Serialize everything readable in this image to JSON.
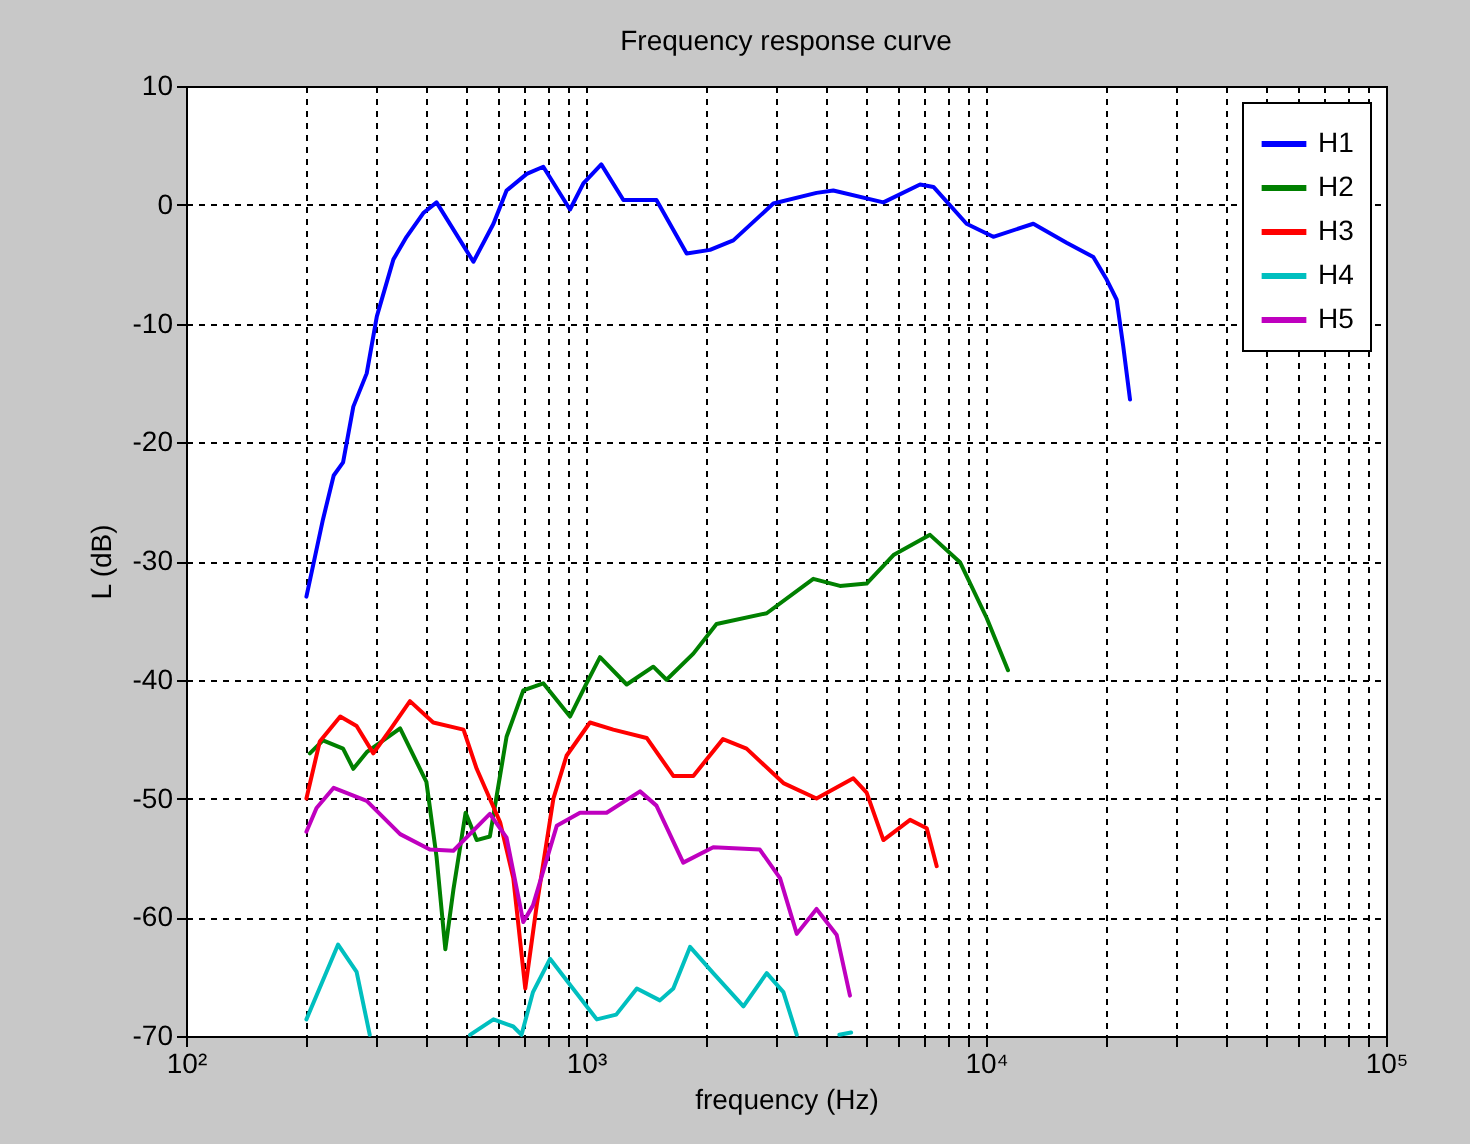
{
  "chart_data": {
    "type": "line",
    "title": "Frequency response curve",
    "xlabel": "frequency  (Hz)",
    "ylabel": "L  (dB)",
    "log": "x",
    "grid": true,
    "legend": "top right",
    "line_style": "solid",
    "marker": "none",
    "xlim": [
      100,
      100000
    ],
    "ylim": [
      -70,
      10
    ],
    "xticks": [
      {
        "value": 100,
        "label": "10²"
      },
      {
        "value": 200,
        "label": null
      },
      {
        "value": 300,
        "label": null
      },
      {
        "value": 400,
        "label": null
      },
      {
        "value": 500,
        "label": null
      },
      {
        "value": 600,
        "label": null
      },
      {
        "value": 700,
        "label": null
      },
      {
        "value": 800,
        "label": null
      },
      {
        "value": 900,
        "label": null
      },
      {
        "value": 1000,
        "label": "10³"
      },
      {
        "value": 2000,
        "label": null
      },
      {
        "value": 3000,
        "label": null
      },
      {
        "value": 4000,
        "label": null
      },
      {
        "value": 5000,
        "label": null
      },
      {
        "value": 6000,
        "label": null
      },
      {
        "value": 7000,
        "label": null
      },
      {
        "value": 8000,
        "label": null
      },
      {
        "value": 9000,
        "label": null
      },
      {
        "value": 10000,
        "label": "10⁴"
      },
      {
        "value": 20000,
        "label": null
      },
      {
        "value": 30000,
        "label": null
      },
      {
        "value": 40000,
        "label": null
      },
      {
        "value": 50000,
        "label": null
      },
      {
        "value": 60000,
        "label": null
      },
      {
        "value": 70000,
        "label": null
      },
      {
        "value": 80000,
        "label": null
      },
      {
        "value": 90000,
        "label": null
      },
      {
        "value": 100000,
        "label": "10⁵"
      }
    ],
    "yticks": [
      -70,
      -60,
      -50,
      -40,
      -30,
      -20,
      -10,
      0,
      10
    ],
    "series": [
      {
        "name": "H1",
        "color": "#0000ff",
        "x": [
          200,
          220,
          234,
          247,
          262,
          283,
          300,
          330,
          356,
          392,
          423,
          523,
          587,
          633,
          711,
          782,
          912,
          985,
          1092,
          1240,
          1500,
          1785,
          2042,
          2335,
          2940,
          3770,
          4152,
          5540,
          6840,
          7390,
          8940,
          10430,
          13130,
          15900,
          18550,
          20030,
          21220,
          22030,
          22910
        ],
        "values": [
          -33,
          -26.5,
          -22.8,
          -21.7,
          -17,
          -14.2,
          -9.4,
          -4.6,
          -2.7,
          -0.7,
          0.2,
          -4.8,
          -1.6,
          1.2,
          2.6,
          3.2,
          -0.4,
          1.8,
          3.4,
          0.4,
          0.4,
          -4.1,
          -3.8,
          -3,
          0.1,
          1,
          1.2,
          0.2,
          1.7,
          1.5,
          -1.6,
          -2.7,
          -1.6,
          -3.2,
          -4.4,
          -6.3,
          -8,
          -11.9,
          -16.4
        ]
      },
      {
        "name": "H2",
        "color": "#008000",
        "x": [
          204,
          220,
          247,
          262,
          283,
          343,
          399,
          423,
          445,
          466,
          500,
          533,
          575,
          633,
          697,
          782,
          912,
          1003,
          1084,
          1264,
          1473,
          1590,
          1855,
          2120,
          2830,
          3700,
          4315,
          5030,
          5870,
          7244,
          8610,
          10040,
          11350
        ],
        "values": [
          -46.2,
          -45.1,
          -45.8,
          -47.5,
          -46.1,
          -44.1,
          -48.6,
          -54.9,
          -62.7,
          -57.7,
          -51.2,
          -53.5,
          -53.2,
          -44.8,
          -40.9,
          -40.3,
          -43.1,
          -40.3,
          -38.1,
          -40.4,
          -38.9,
          -40,
          -37.8,
          -35.3,
          -34.4,
          -31.5,
          -32.1,
          -31.9,
          -29.5,
          -27.8,
          -30.1,
          -34.8,
          -39.2
        ]
      },
      {
        "name": "H3",
        "color": "#ff0000",
        "x": [
          200,
          216,
          243,
          267,
          294,
          324,
          363,
          415,
          494,
          533,
          610,
          658,
          705,
          753,
          829,
          894,
          1023,
          1170,
          1418,
          1653,
          1855,
          2200,
          2520,
          3115,
          3770,
          4660,
          5030,
          5540,
          6460,
          7110,
          7530
        ],
        "values": [
          -50,
          -45.2,
          -43.1,
          -43.9,
          -46.2,
          -44.2,
          -41.8,
          -43.6,
          -44.2,
          -47.5,
          -52,
          -56.7,
          -66,
          -59,
          -50,
          -46.4,
          -43.6,
          -44.2,
          -44.9,
          -48.1,
          -48.1,
          -45,
          -45.8,
          -48.7,
          -50,
          -48.3,
          -49.5,
          -53.5,
          -51.8,
          -52.5,
          -55.7
        ]
      },
      {
        "name": "H4",
        "color": "#00bfbf",
        "x": [
          200,
          240,
          267,
          288,
          300,
          500,
          513,
          587,
          658,
          690,
          737,
          813,
          894,
          1064,
          1190,
          1340,
          1530,
          1653,
          1820,
          2080,
          2475,
          2830,
          3115,
          3365,
          3500,
          4250,
          4300,
          4600
        ],
        "values": [
          -68.6,
          -62.3,
          -64.6,
          -69.9,
          null,
          null,
          -69.9,
          -68.6,
          -69.2,
          -69.9,
          -66.3,
          -63.5,
          -65.3,
          -68.6,
          -68.2,
          -66,
          -67,
          -66,
          -62.5,
          -64.7,
          -67.5,
          -64.7,
          -66.3,
          -69.9,
          null,
          null,
          -69.9,
          -69.7
        ]
      },
      {
        "name": "H5",
        "color": "#bf00bf",
        "x": [
          200,
          212,
          234,
          283,
          343,
          407,
          466,
          575,
          633,
          697,
          737,
          845,
          966,
          1126,
          1365,
          1500,
          1750,
          2080,
          2720,
          3055,
          3365,
          3770,
          4235,
          4570
        ],
        "values": [
          -52.8,
          -50.8,
          -49.1,
          -50.2,
          -53,
          -54.3,
          -54.4,
          -51.3,
          -53.3,
          -60.4,
          -59,
          -52.3,
          -51.2,
          -51.2,
          -49.4,
          -50.6,
          -55.4,
          -54.1,
          -54.3,
          -56.7,
          -61.4,
          -59.3,
          -61.5,
          -66.6
        ]
      }
    ]
  }
}
